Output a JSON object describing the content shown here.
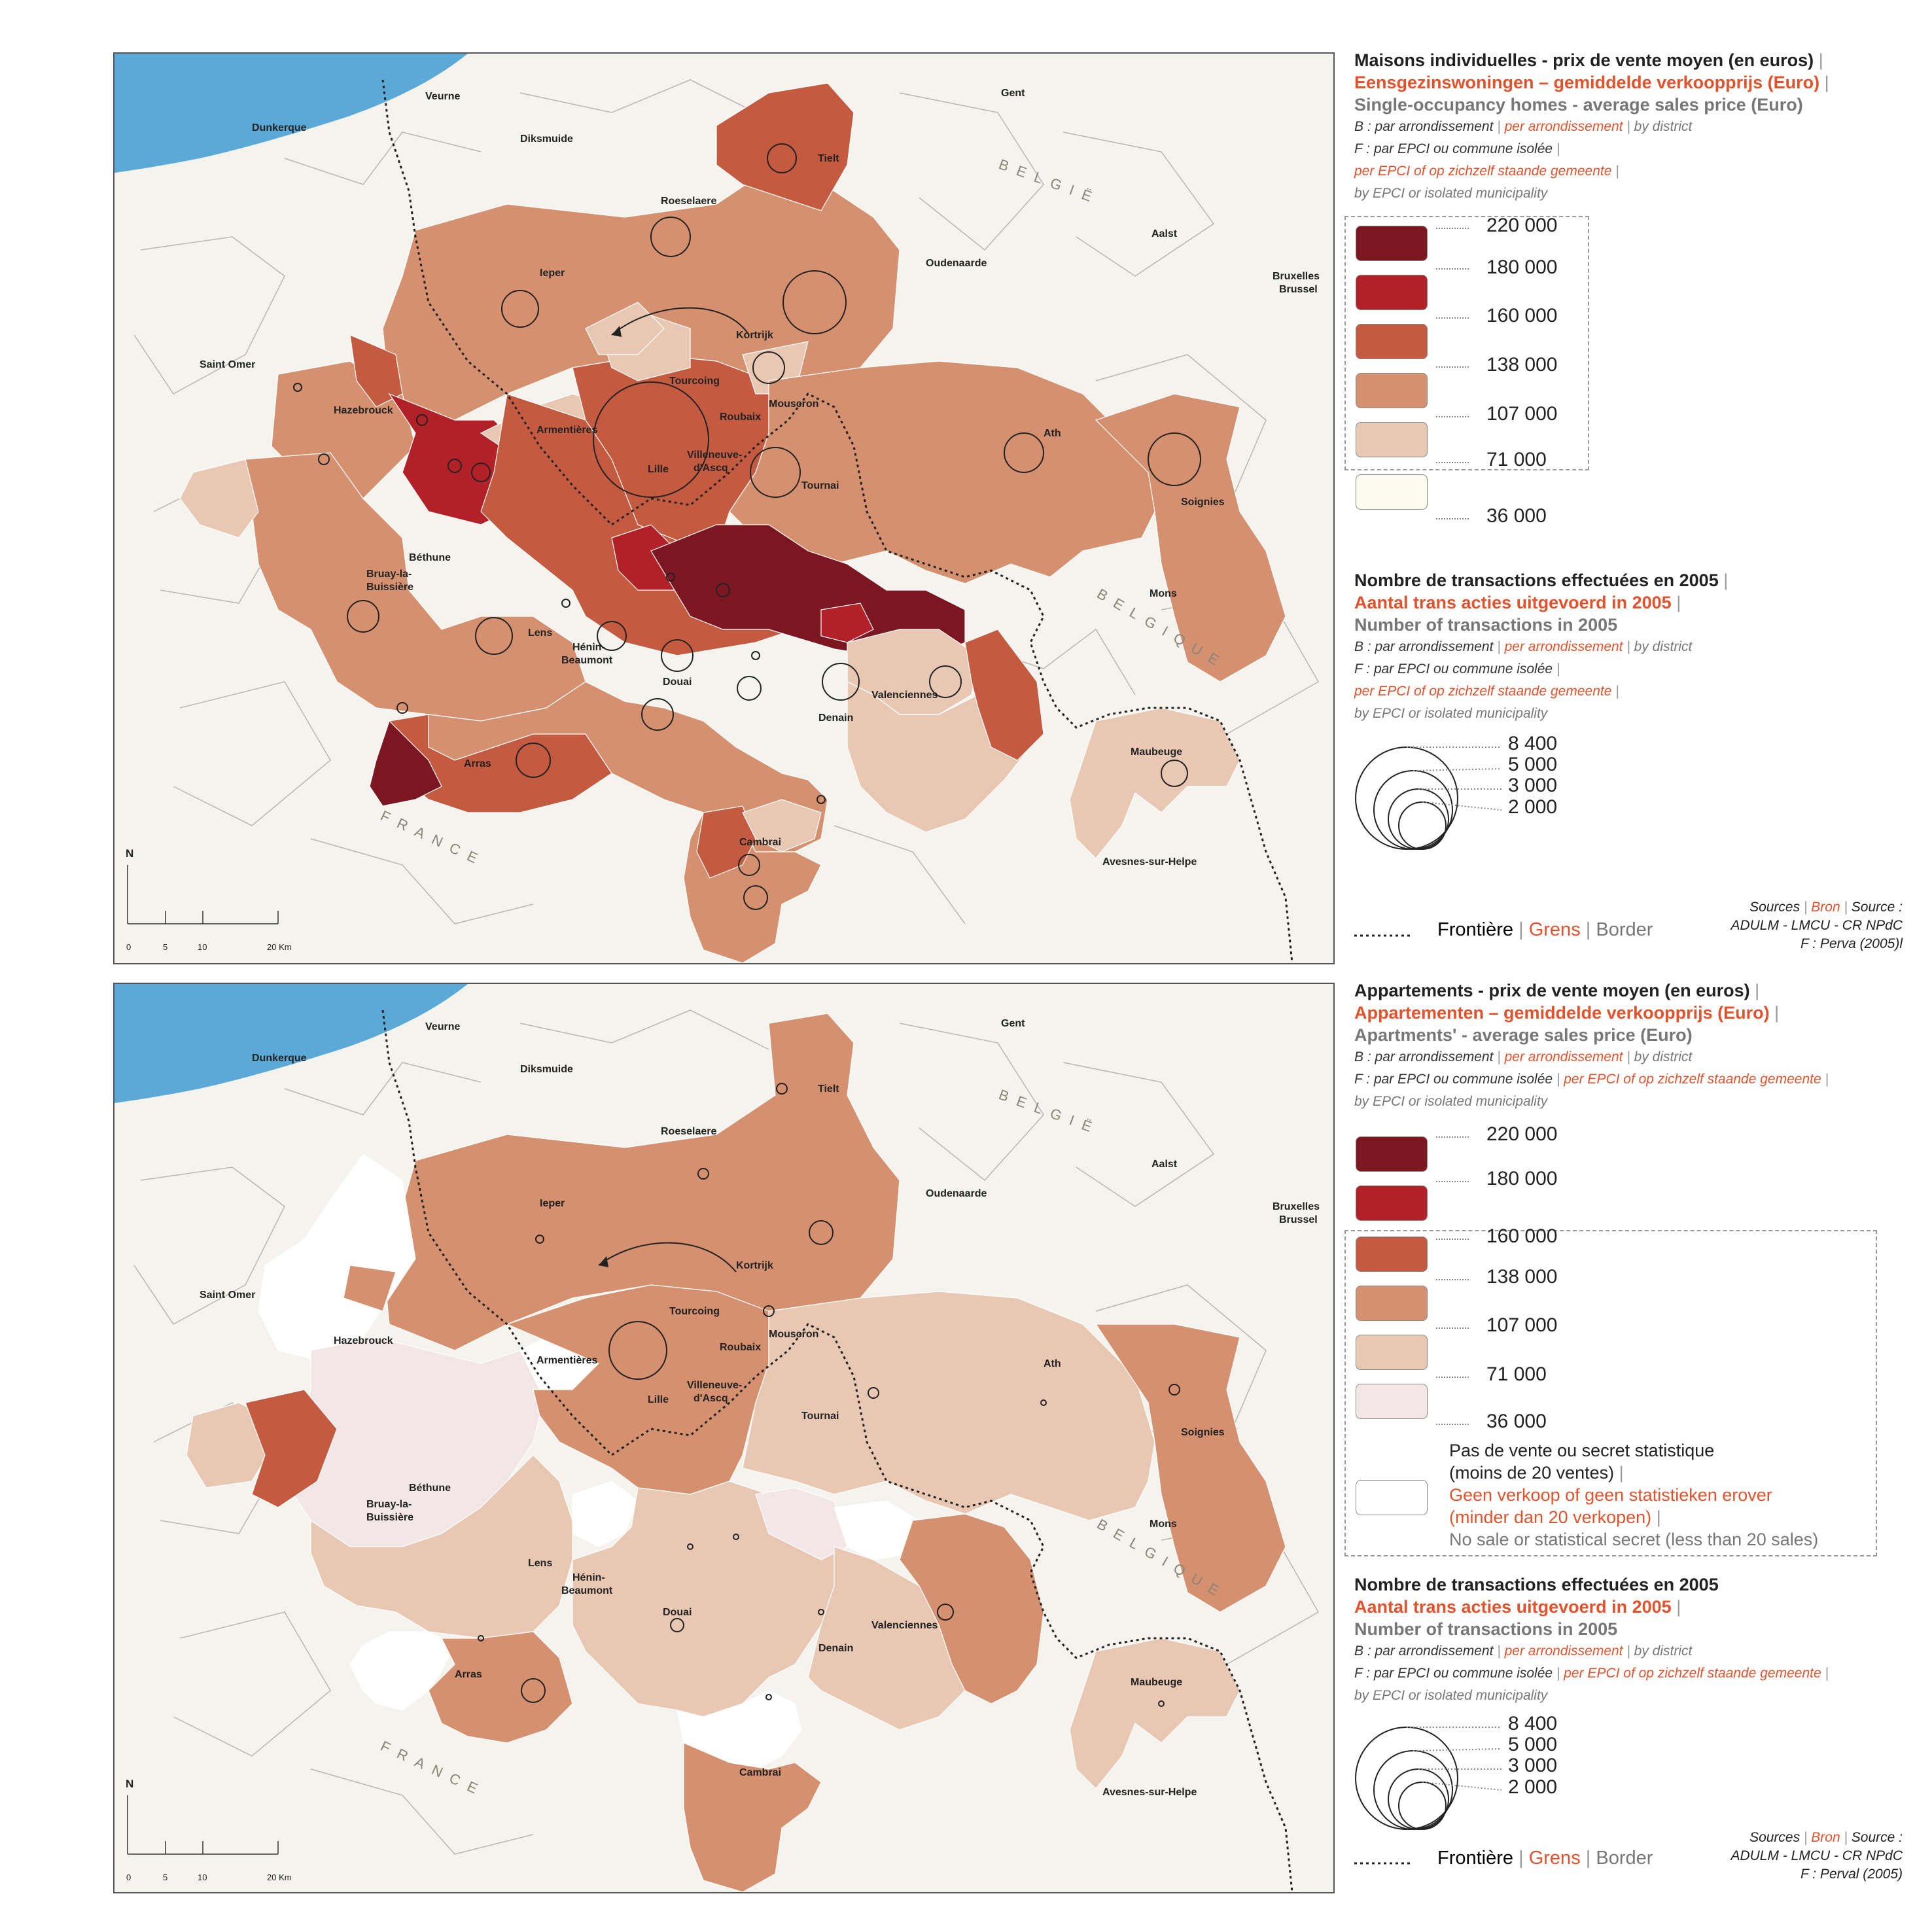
{
  "colors": {
    "c36": "#fbfbee",
    "c71": "#e8c8b3",
    "c107": "#d4906f",
    "c138": "#c45a40",
    "c160": "#b32128",
    "c180": "#7c1620",
    "nodata": "#ffffff",
    "c36b": "#f3e6e6",
    "sea": "#5aa9d6",
    "land": "#f5f3ee",
    "lines": "#b9b6b0"
  },
  "class_values": [
    "220 000",
    "180 000",
    "160 000",
    "138 000",
    "107 000",
    "71 000",
    "36 000"
  ],
  "circle_values": [
    "8 400",
    "5 000",
    "3 000",
    "2 000"
  ],
  "places": {
    "dunkerque": "Dunkerque",
    "veurne": "Veurne",
    "diksmuide": "Diksmuide",
    "gent": "Gent",
    "tielt": "Tielt",
    "roeselaere": "Roeselaere",
    "ieper": "Ieper",
    "aalst": "Aalst",
    "oudenaarde": "Oudenaarde",
    "bruxelles": "Bruxelles",
    "brussel": "Brussel",
    "kortrijk": "Kortrijk",
    "saint_omer": "Saint Omer",
    "hazebrouck": "Hazebrouck",
    "tourcoing": "Tourcoing",
    "mouscron": "Mouscron",
    "roubaix": "Roubaix",
    "armentieres": "Armentières",
    "lille": "Lille",
    "villeneuve1": "Villeneuve-",
    "villeneuve2": "d'Ascq",
    "ath": "Ath",
    "tournai": "Tournai",
    "soignies": "Soignies",
    "bethune": "Béthune",
    "bruay1": "Bruay-la-",
    "bruay2": "Buissière",
    "mons": "Mons",
    "lens": "Lens",
    "henin1": "Hénin-",
    "henin2": "Beaumont",
    "douai": "Douai",
    "valenciennes": "Valenciennes",
    "denain": "Denain",
    "maubeuge": "Maubeuge",
    "arras": "Arras",
    "cambrai": "Cambrai",
    "avesnes": "Avesnes-sur-Helpe",
    "belgie": "BELGIË",
    "belgique": "BELGIQUE",
    "france": "FRANCE"
  },
  "scale": {
    "north": "N",
    "ticks": [
      "0",
      "5",
      "10",
      "20 Km"
    ]
  },
  "panel1": {
    "title_fr": "Maisons individuelles - prix de vente moyen (en euros)",
    "title_nl": "Eensgezinswoningen – gemiddelde verkoopprijs (Euro)",
    "title_en": "Single-occupancy homes - average sales price (Euro)",
    "b_fr": "B : par arrondissement",
    "b_nl": "per arrondissement",
    "b_en": "by district",
    "f_fr": "F : par EPCI ou commune isolée",
    "f_nl": "per EPCI of op zichzelf staande gemeente",
    "f_en": "by EPCI or isolated municipality",
    "tx_fr": "Nombre de  transactions effectuées en 2005",
    "tx_nl": "Aantal trans acties uitgevoerd in 2005",
    "tx_en": "Number of transactions in 2005",
    "front_fr": "Frontière",
    "front_nl": "Grens",
    "front_en": "Border",
    "src_l1_fr": "Sources",
    "src_l1_nl": "Bron",
    "src_l1_en": "Source :",
    "src_l2": "ADULM - LMCU - CR NPdC",
    "src_l3": "F : Perva (2005)l"
  },
  "panel2": {
    "title_fr": "Appartements - prix de vente moyen (en euros)",
    "title_nl": "Appartementen – gemiddelde verkoopprijs (Euro)",
    "title_en": "Apartments' - average sales price (Euro)",
    "b_fr": "B : par arrondissement",
    "b_nl": "per arrondissement",
    "b_en": "by district",
    "f_fr": "F : par EPCI ou commune isolée",
    "f_nl": "per EPCI of op zichzelf staande gemeente",
    "f_en": "by EPCI or isolated municipality",
    "nodata_fr1": "Pas de vente ou secret statistique",
    "nodata_fr2": "(moins de 20 ventes)",
    "nodata_nl1": "Geen verkoop of geen statistieken erover",
    "nodata_nl2": "(minder dan 20 verkopen)",
    "nodata_en": "No sale or statistical secret (less than 20 sales)",
    "tx_fr": "Nombre de  transactions effectuées en 2005",
    "tx_nl": "Aantal trans acties uitgevoerd in 2005",
    "tx_en": "Number of transactions in 2005",
    "front_fr": "Frontière",
    "front_nl": "Grens",
    "front_en": "Border",
    "src_l1_fr": "Sources",
    "src_l1_nl": "Bron",
    "src_l1_en": "Source :",
    "src_l2": "ADULM - LMCU - CR NPdC",
    "src_l3": "F : Perval (2005)"
  }
}
